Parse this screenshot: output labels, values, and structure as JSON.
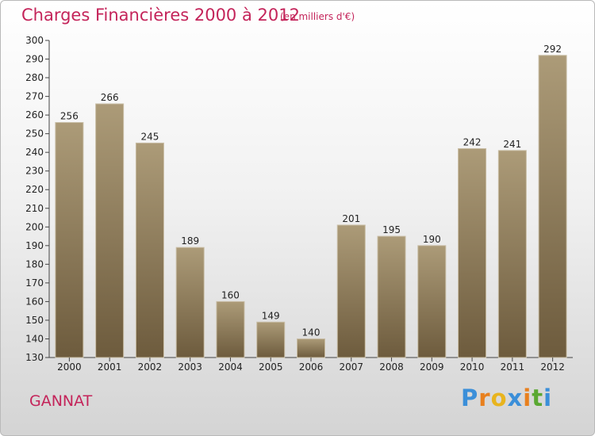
{
  "header": {
    "title": "Charges Financières 2000 à 2012",
    "subtitle": "(en milliers d'€)"
  },
  "footer": {
    "city": "GANNAT",
    "logo": {
      "text": "Proxiti",
      "letters": [
        "P",
        "r",
        "o",
        "x",
        "i",
        "t",
        "i"
      ],
      "letter_colors": [
        "#3b8fd9",
        "#e8801e",
        "#e8b41e",
        "#3b8fd9",
        "#e8801e",
        "#5aa832",
        "#3b8fd9"
      ]
    }
  },
  "colors": {
    "title": "#c4245a",
    "bar_top": "#ac9b78",
    "bar_bottom": "#6d5b3d"
  },
  "chart_data": {
    "type": "bar",
    "categories": [
      "2000",
      "2001",
      "2002",
      "2003",
      "2004",
      "2005",
      "2006",
      "2007",
      "2008",
      "2009",
      "2010",
      "2011",
      "2012"
    ],
    "values": [
      256,
      266,
      245,
      189,
      160,
      149,
      140,
      201,
      195,
      190,
      242,
      241,
      292
    ],
    "ylim": [
      130,
      300
    ],
    "yticks": [
      130,
      140,
      150,
      160,
      170,
      180,
      190,
      200,
      210,
      220,
      230,
      240,
      250,
      260,
      270,
      280,
      290,
      300
    ],
    "grid": false,
    "data_labels": true
  }
}
